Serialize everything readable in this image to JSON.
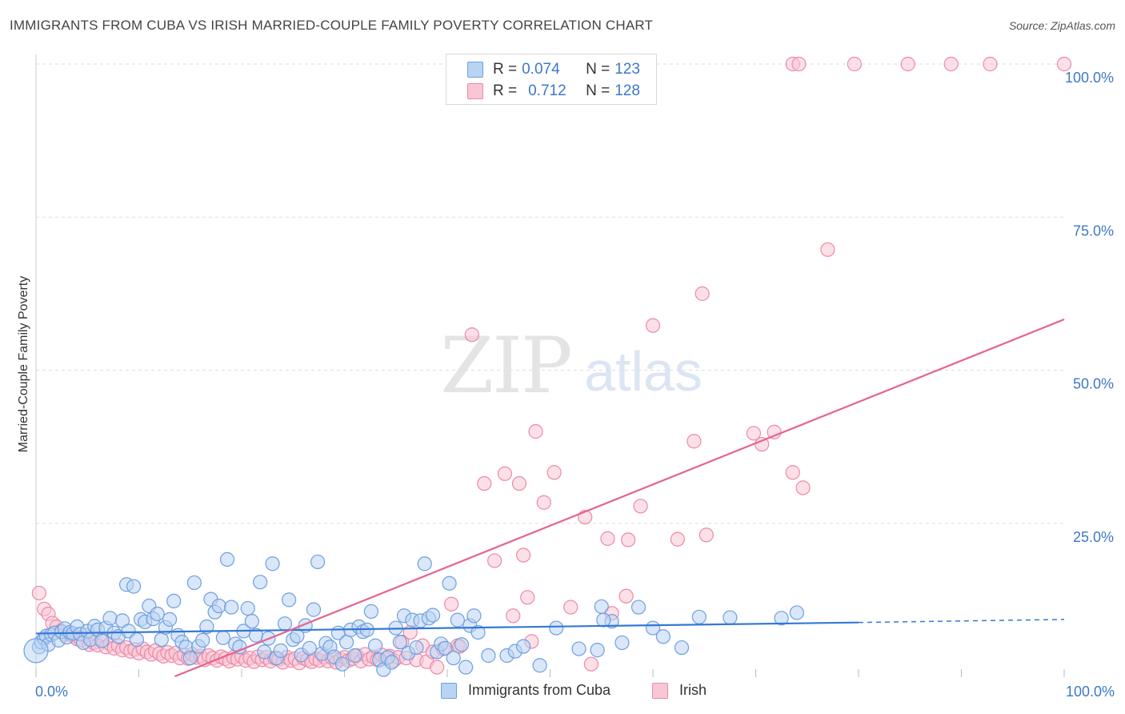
{
  "header": {
    "title": "IMMIGRANTS FROM CUBA VS IRISH MARRIED-COUPLE FAMILY POVERTY CORRELATION CHART",
    "source": "Source: ZipAtlas.com"
  },
  "watermark": {
    "zip": "ZIP",
    "atlas": "atlas"
  },
  "legend": {
    "r_label": "R =",
    "n_label": "N =",
    "series": [
      {
        "name": "Immigrants from Cuba",
        "r": "0.074",
        "n": "123",
        "fill": "#b9d3f3",
        "stroke": "#6e9fe0"
      },
      {
        "name": "Irish",
        "r": "0.712",
        "n": "128",
        "fill": "#f9c6d5",
        "stroke": "#ec89a6"
      }
    ]
  },
  "colors": {
    "blue_line": "#3478d4",
    "pink_line": "#e5638f",
    "tick_text": "#3d78c9",
    "grid": "#dddddd"
  },
  "chart_data": {
    "type": "scatter",
    "title": "IMMIGRANTS FROM CUBA VS IRISH MARRIED-COUPLE FAMILY POVERTY CORRELATION CHART",
    "xlabel": "",
    "ylabel": "Married-Couple Family Poverty",
    "xlim": [
      0,
      100
    ],
    "ylim": [
      0,
      100
    ],
    "x_tick_labels": [
      "0.0%",
      "100.0%"
    ],
    "y_tick_labels": [
      {
        "value": 100,
        "label": "100.0%"
      },
      {
        "value": 75,
        "label": "75.0%"
      },
      {
        "value": 50,
        "label": "50.0%"
      },
      {
        "value": 25,
        "label": "25.0%"
      }
    ],
    "series": [
      {
        "name": "Immigrants from Cuba",
        "r": 0.074,
        "n": 123,
        "trend": {
          "x0": 0,
          "y0": 7.0,
          "x1": 80,
          "y1": 8.8,
          "dashed_to_x": 100,
          "dashed_to_y": 9.3
        },
        "points": [
          [
            0.3,
            4.8
          ],
          [
            0.5,
            5.6
          ],
          [
            0.8,
            6.2
          ],
          [
            1.0,
            6.6
          ],
          [
            1.2,
            5.2
          ],
          [
            1.5,
            6.8
          ],
          [
            1.8,
            7.1
          ],
          [
            2.2,
            5.9
          ],
          [
            2.5,
            7.3
          ],
          [
            2.8,
            7.8
          ],
          [
            3.0,
            6.4
          ],
          [
            3.3,
            7.2
          ],
          [
            3.6,
            7.0
          ],
          [
            4.0,
            8.1
          ],
          [
            4.3,
            6.9
          ],
          [
            4.6,
            5.5
          ],
          [
            5.0,
            7.4
          ],
          [
            5.3,
            6.0
          ],
          [
            5.7,
            8.2
          ],
          [
            6.0,
            7.6
          ],
          [
            6.4,
            5.8
          ],
          [
            6.8,
            7.9
          ],
          [
            7.2,
            9.5
          ],
          [
            7.6,
            7.1
          ],
          [
            8.0,
            6.5
          ],
          [
            8.4,
            9.1
          ],
          [
            8.8,
            15.0
          ],
          [
            9.0,
            7.4
          ],
          [
            9.5,
            14.7
          ],
          [
            9.8,
            6.0
          ],
          [
            10.2,
            9.3
          ],
          [
            10.6,
            8.9
          ],
          [
            11.0,
            11.5
          ],
          [
            11.4,
            9.4
          ],
          [
            11.8,
            10.2
          ],
          [
            12.2,
            6.0
          ],
          [
            12.6,
            8.0
          ],
          [
            13.0,
            9.3
          ],
          [
            13.4,
            12.3
          ],
          [
            13.8,
            6.7
          ],
          [
            14.2,
            5.6
          ],
          [
            14.6,
            4.8
          ],
          [
            15.0,
            3.0
          ],
          [
            15.4,
            15.3
          ],
          [
            15.8,
            4.9
          ],
          [
            16.2,
            5.9
          ],
          [
            16.6,
            8.1
          ],
          [
            17.0,
            12.6
          ],
          [
            17.4,
            10.5
          ],
          [
            17.8,
            11.5
          ],
          [
            18.2,
            6.3
          ],
          [
            18.6,
            19.1
          ],
          [
            19.0,
            11.3
          ],
          [
            19.4,
            5.3
          ],
          [
            19.8,
            4.8
          ],
          [
            20.2,
            7.4
          ],
          [
            20.6,
            11.1
          ],
          [
            21.0,
            9.0
          ],
          [
            21.4,
            6.7
          ],
          [
            21.8,
            15.4
          ],
          [
            22.2,
            4.0
          ],
          [
            22.6,
            6.2
          ],
          [
            23.0,
            18.4
          ],
          [
            23.4,
            3.0
          ],
          [
            23.8,
            4.2
          ],
          [
            24.2,
            8.6
          ],
          [
            24.6,
            12.5
          ],
          [
            25.0,
            6.0
          ],
          [
            25.4,
            6.6
          ],
          [
            25.8,
            3.5
          ],
          [
            26.2,
            8.3
          ],
          [
            26.6,
            4.6
          ],
          [
            27.0,
            10.9
          ],
          [
            27.4,
            18.7
          ],
          [
            27.8,
            3.7
          ],
          [
            28.2,
            5.4
          ],
          [
            28.6,
            4.8
          ],
          [
            29.0,
            3.2
          ],
          [
            29.4,
            7.1
          ],
          [
            29.8,
            2.0
          ],
          [
            30.2,
            5.6
          ],
          [
            30.6,
            7.6
          ],
          [
            31.0,
            3.4
          ],
          [
            31.4,
            8.1
          ],
          [
            31.8,
            7.3
          ],
          [
            32.2,
            7.6
          ],
          [
            32.6,
            10.6
          ],
          [
            33.0,
            5.0
          ],
          [
            33.4,
            2.7
          ],
          [
            33.8,
            1.1
          ],
          [
            34.2,
            3.1
          ],
          [
            34.6,
            2.3
          ],
          [
            35.0,
            7.9
          ],
          [
            35.4,
            5.6
          ],
          [
            35.8,
            9.9
          ],
          [
            36.2,
            3.8
          ],
          [
            36.6,
            9.2
          ],
          [
            37.0,
            4.7
          ],
          [
            37.4,
            9.1
          ],
          [
            37.8,
            18.4
          ],
          [
            38.2,
            9.5
          ],
          [
            38.6,
            10.0
          ],
          [
            39.0,
            4.0
          ],
          [
            39.4,
            5.3
          ],
          [
            39.8,
            4.6
          ],
          [
            40.2,
            15.2
          ],
          [
            40.6,
            3.0
          ],
          [
            41.0,
            9.2
          ],
          [
            41.4,
            5.2
          ],
          [
            41.8,
            1.5
          ],
          [
            42.2,
            8.3
          ],
          [
            42.6,
            9.9
          ],
          [
            44.0,
            3.4
          ],
          [
            45.8,
            3.4
          ],
          [
            46.6,
            4.1
          ],
          [
            47.4,
            4.9
          ],
          [
            49.0,
            1.8
          ],
          [
            50.6,
            7.9
          ],
          [
            52.8,
            4.5
          ],
          [
            54.6,
            4.3
          ],
          [
            55.0,
            11.4
          ],
          [
            56.0,
            9.0
          ],
          [
            57.0,
            5.5
          ],
          [
            58.6,
            11.3
          ],
          [
            60.0,
            7.9
          ],
          [
            61.0,
            6.5
          ],
          [
            62.8,
            4.7
          ],
          [
            64.5,
            9.7
          ],
          [
            67.5,
            9.6
          ],
          [
            72.5,
            9.5
          ],
          [
            74.0,
            10.4
          ],
          [
            55.2,
            9.2
          ],
          [
            43.0,
            7.2
          ]
        ]
      },
      {
        "name": "Irish",
        "r": 0.712,
        "n": 128,
        "trend": {
          "x0": 13.5,
          "y0": 0,
          "x1": 100,
          "y1": 58.3
        },
        "points": [
          [
            0.3,
            13.6
          ],
          [
            0.8,
            11.0
          ],
          [
            1.2,
            10.2
          ],
          [
            1.6,
            8.7
          ],
          [
            2.0,
            8.1
          ],
          [
            2.4,
            7.4
          ],
          [
            2.8,
            6.8
          ],
          [
            3.2,
            7.0
          ],
          [
            3.6,
            6.6
          ],
          [
            4.0,
            6.1
          ],
          [
            4.4,
            5.9
          ],
          [
            4.8,
            6.7
          ],
          [
            5.2,
            5.2
          ],
          [
            5.6,
            5.5
          ],
          [
            6.0,
            5.1
          ],
          [
            6.4,
            6.0
          ],
          [
            6.8,
            4.8
          ],
          [
            7.2,
            5.3
          ],
          [
            7.6,
            4.6
          ],
          [
            8.0,
            5.0
          ],
          [
            8.4,
            4.3
          ],
          [
            8.8,
            4.7
          ],
          [
            9.2,
            4.1
          ],
          [
            9.6,
            4.4
          ],
          [
            10.0,
            3.8
          ],
          [
            10.4,
            4.5
          ],
          [
            10.8,
            4.0
          ],
          [
            11.2,
            3.6
          ],
          [
            11.6,
            4.2
          ],
          [
            12.0,
            3.7
          ],
          [
            12.4,
            3.3
          ],
          [
            12.8,
            3.9
          ],
          [
            13.2,
            3.4
          ],
          [
            13.6,
            3.8
          ],
          [
            14.0,
            3.0
          ],
          [
            14.4,
            3.5
          ],
          [
            14.8,
            2.9
          ],
          [
            15.2,
            3.6
          ],
          [
            15.6,
            3.1
          ],
          [
            16.0,
            3.3
          ],
          [
            16.4,
            2.7
          ],
          [
            16.8,
            3.4
          ],
          [
            17.2,
            3.0
          ],
          [
            17.6,
            2.6
          ],
          [
            18.0,
            3.2
          ],
          [
            18.4,
            2.9
          ],
          [
            18.8,
            2.5
          ],
          [
            19.2,
            3.1
          ],
          [
            19.6,
            2.8
          ],
          [
            20.0,
            3.3
          ],
          [
            20.4,
            2.6
          ],
          [
            20.8,
            3.0
          ],
          [
            21.2,
            2.4
          ],
          [
            21.6,
            3.2
          ],
          [
            22.0,
            2.7
          ],
          [
            22.4,
            3.1
          ],
          [
            22.8,
            2.5
          ],
          [
            23.2,
            3.0
          ],
          [
            23.6,
            2.8
          ],
          [
            24.0,
            2.3
          ],
          [
            24.4,
            3.1
          ],
          [
            24.8,
            2.6
          ],
          [
            25.2,
            2.9
          ],
          [
            25.6,
            2.2
          ],
          [
            26.0,
            3.0
          ],
          [
            26.4,
            2.7
          ],
          [
            26.8,
            2.4
          ],
          [
            27.2,
            2.9
          ],
          [
            27.6,
            2.6
          ],
          [
            28.0,
            3.2
          ],
          [
            28.4,
            2.5
          ],
          [
            28.8,
            3.0
          ],
          [
            29.2,
            2.3
          ],
          [
            29.6,
            2.8
          ],
          [
            30.0,
            3.1
          ],
          [
            30.4,
            2.6
          ],
          [
            30.8,
            2.9
          ],
          [
            31.2,
            3.4
          ],
          [
            31.6,
            2.5
          ],
          [
            32.0,
            3.6
          ],
          [
            32.4,
            2.8
          ],
          [
            32.8,
            3.2
          ],
          [
            33.2,
            2.7
          ],
          [
            33.6,
            3.5
          ],
          [
            34.0,
            2.9
          ],
          [
            34.4,
            3.3
          ],
          [
            34.8,
            2.6
          ],
          [
            35.2,
            3.1
          ],
          [
            35.6,
            5.6
          ],
          [
            36.0,
            3.0
          ],
          [
            36.4,
            7.2
          ],
          [
            37.0,
            2.7
          ],
          [
            37.6,
            5.0
          ],
          [
            38.0,
            2.4
          ],
          [
            38.6,
            4.0
          ],
          [
            39.0,
            1.5
          ],
          [
            39.6,
            4.5
          ],
          [
            40.4,
            11.8
          ],
          [
            41.0,
            5.0
          ],
          [
            41.2,
            4.9
          ],
          [
            42.4,
            55.8
          ],
          [
            43.6,
            31.5
          ],
          [
            44.6,
            18.9
          ],
          [
            45.6,
            33.1
          ],
          [
            46.4,
            9.9
          ],
          [
            47.0,
            31.5
          ],
          [
            47.4,
            19.8
          ],
          [
            47.8,
            12.9
          ],
          [
            48.2,
            5.7
          ],
          [
            48.6,
            40.0
          ],
          [
            49.4,
            28.4
          ],
          [
            50.4,
            33.3
          ],
          [
            52.0,
            11.3
          ],
          [
            53.4,
            26.0
          ],
          [
            54.0,
            2.0
          ],
          [
            55.6,
            22.5
          ],
          [
            56.0,
            10.3
          ],
          [
            57.4,
            13.1
          ],
          [
            57.6,
            22.3
          ],
          [
            58.8,
            27.8
          ],
          [
            60.0,
            57.3
          ],
          [
            62.4,
            22.4
          ],
          [
            64.0,
            38.4
          ],
          [
            64.8,
            62.5
          ],
          [
            65.2,
            23.1
          ],
          [
            69.8,
            39.7
          ],
          [
            70.6,
            37.9
          ],
          [
            71.8,
            39.9
          ],
          [
            73.6,
            33.3
          ],
          [
            74.6,
            30.8
          ],
          [
            73.6,
            100
          ],
          [
            74.2,
            100
          ],
          [
            77.0,
            69.7
          ],
          [
            79.6,
            100
          ],
          [
            84.8,
            100
          ],
          [
            89.0,
            100
          ],
          [
            92.8,
            100
          ],
          [
            100.0,
            100
          ]
        ]
      }
    ]
  }
}
